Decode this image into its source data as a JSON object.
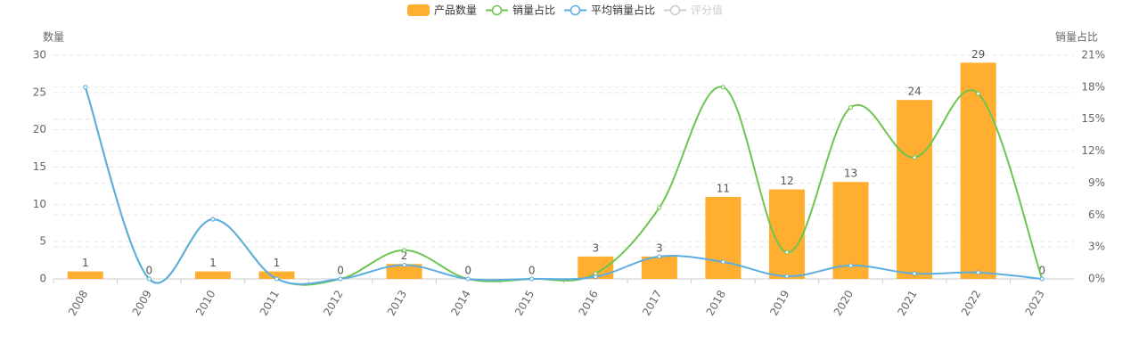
{
  "chart_data": {
    "type": "bar",
    "categories": [
      "2008",
      "2009",
      "2010",
      "2011",
      "2012",
      "2013",
      "2014",
      "2015",
      "2016",
      "2017",
      "2018",
      "2019",
      "2020",
      "2021",
      "2022",
      "2023"
    ],
    "ylabel": "数量",
    "y2label": "销量占比",
    "ylim": [
      0,
      30
    ],
    "yticks": [
      0,
      5,
      10,
      15,
      20,
      25,
      30
    ],
    "y2lim": [
      0,
      21
    ],
    "y2ticks": [
      {
        "value": 0,
        "label": "0%"
      },
      {
        "value": 3,
        "label": "3%"
      },
      {
        "value": 6,
        "label": "6%"
      },
      {
        "value": 9,
        "label": "9%"
      },
      {
        "value": 12,
        "label": "12%"
      },
      {
        "value": 15,
        "label": "15%"
      },
      {
        "value": 18,
        "label": "18%"
      },
      {
        "value": 21,
        "label": "21%"
      }
    ],
    "grid": true,
    "series": [
      {
        "name": "产品数量",
        "type": "bar",
        "color": "#ffae2f",
        "values": [
          1,
          0,
          1,
          1,
          0,
          2,
          0,
          0,
          3,
          3,
          11,
          12,
          13,
          24,
          29,
          0
        ]
      },
      {
        "name": "销量占比",
        "type": "line",
        "axis": "y2",
        "color": "#6cc551",
        "values": [
          18,
          0,
          5.6,
          0,
          0,
          2.7,
          0,
          0,
          0.5,
          6.7,
          18,
          2.5,
          16.1,
          11.4,
          17.4,
          0
        ]
      },
      {
        "name": "平均销量占比",
        "type": "line",
        "axis": "y2",
        "color": "#5dade2",
        "values": [
          18,
          0,
          5.6,
          0,
          0,
          1.3,
          0,
          0,
          0.2,
          2.1,
          1.6,
          0.25,
          1.25,
          0.5,
          0.6,
          0
        ]
      },
      {
        "name": "评分值",
        "type": "line",
        "axis": "y2",
        "color": "#cccccc",
        "hidden": true
      }
    ]
  }
}
